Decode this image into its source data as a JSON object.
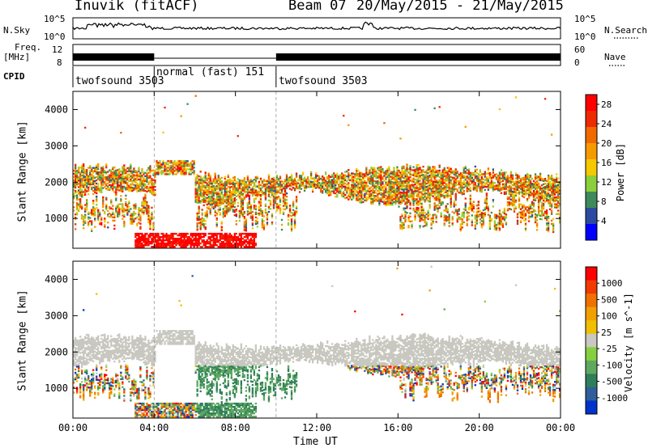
{
  "header": {
    "station": "Inuvik (fitACF)",
    "beam_label": "Beam 07",
    "date_range": "20/May/2015 - 21/May/2015"
  },
  "top_panels": {
    "nsky_label": "N.Sky",
    "nsearch_label": "N.Search",
    "freq_label": "Freq.",
    "freq_unit": "[MHz]",
    "nave_label": "Nave",
    "cpid_label": "CPID",
    "noise_ticks_left": [
      "10^5",
      "10^0"
    ],
    "noise_ticks_right": [
      "10^5",
      "10^0"
    ],
    "freq_ticks_left": [
      "12",
      "8"
    ],
    "nave_ticks_right": [
      "60",
      "0"
    ]
  },
  "cpid_segments": [
    {
      "label": "twofsound 3503",
      "start_h": 0,
      "end_h": 4
    },
    {
      "label": "normal (fast) 151",
      "start_h": 4,
      "end_h": 10
    },
    {
      "label": "twofsound 3503",
      "start_h": 10,
      "end_h": 24
    }
  ],
  "colors": {
    "power_scale": [
      "#0000ff",
      "#2b4aa0",
      "#3f8a5a",
      "#8ccf3c",
      "#f5c800",
      "#f59a00",
      "#f06a00",
      "#ee2a00",
      "#ff0000"
    ],
    "velocity_scale": [
      "#0033cc",
      "#2f5e9a",
      "#2f7e5a",
      "#5fa860",
      "#86d040",
      "#c8c8c0",
      "#f0c000",
      "#f0a000",
      "#f07000",
      "#f03a00",
      "#ff0000"
    ]
  },
  "chart_data": [
    {
      "type": "heatmap",
      "panel": "power",
      "xlabel": "",
      "ylabel": "Slant Range [km]",
      "xlim": [
        0,
        24
      ],
      "ylim": [
        180,
        4500
      ],
      "x_tick_labels": [
        "00:00",
        "04:00",
        "08:00",
        "12:00",
        "16:00",
        "20:00",
        "00:00"
      ],
      "y_ticks": [
        1000,
        2000,
        3000,
        4000
      ],
      "colorbar": {
        "label": "Power [dB]",
        "ticks": [
          4,
          8,
          12,
          16,
          20,
          24,
          28
        ],
        "range": [
          0,
          30
        ]
      }
    },
    {
      "type": "heatmap",
      "panel": "velocity",
      "xlabel": "Time UT",
      "ylabel": "Slant Range [km]",
      "xlim": [
        0,
        24
      ],
      "ylim": [
        180,
        4500
      ],
      "x_tick_labels": [
        "00:00",
        "04:00",
        "08:00",
        "12:00",
        "16:00",
        "20:00",
        "00:00"
      ],
      "y_ticks": [
        1000,
        2000,
        3000,
        4000
      ],
      "colorbar": {
        "label": "Velocity [m s^-1]",
        "ticks": [
          "1000",
          "500",
          "100",
          "25",
          "-25",
          "-100",
          "-500",
          "-1000"
        ]
      }
    }
  ]
}
